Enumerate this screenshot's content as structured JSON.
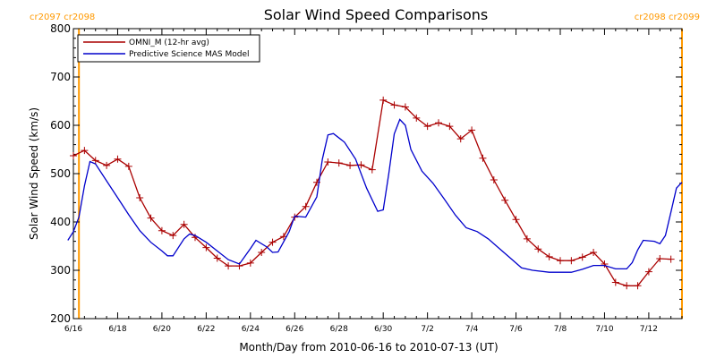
{
  "chart_data": {
    "type": "line",
    "title": "Solar Wind Speed Comparisons",
    "xlabel": "Month/Day from 2010-06-16 to 2010-07-13 (UT)",
    "ylabel": "Solar Wind Speed (km/s)",
    "xlim": [
      "2010-06-16",
      "2010-07-13T12:00"
    ],
    "ylim": [
      200,
      800
    ],
    "yticks": [
      200,
      300,
      400,
      500,
      600,
      700,
      800
    ],
    "xticks": [
      {
        "date": "2010-06-16",
        "label": "6/16"
      },
      {
        "date": "2010-06-18",
        "label": "6/18"
      },
      {
        "date": "2010-06-20",
        "label": "6/20"
      },
      {
        "date": "2010-06-22",
        "label": "6/22"
      },
      {
        "date": "2010-06-24",
        "label": "6/24"
      },
      {
        "date": "2010-06-26",
        "label": "6/26"
      },
      {
        "date": "2010-06-28",
        "label": "6/28"
      },
      {
        "date": "2010-06-30",
        "label": "6/30"
      },
      {
        "date": "2010-07-02",
        "label": "7/2"
      },
      {
        "date": "2010-07-04",
        "label": "7/4"
      },
      {
        "date": "2010-07-06",
        "label": "7/6"
      },
      {
        "date": "2010-07-08",
        "label": "7/8"
      },
      {
        "date": "2010-07-10",
        "label": "7/10"
      },
      {
        "date": "2010-07-12",
        "label": "7/12"
      }
    ],
    "rotation_markers": [
      {
        "date": "2010-06-16T06:00",
        "label": "cr2097 cr2098",
        "label_position": "top-left"
      },
      {
        "date": "2010-07-13T12:00",
        "label": "cr2098 cr2099",
        "label_position": "top-right"
      }
    ],
    "legend_position": "top-left",
    "series": [
      {
        "name": "OMNI_M (12-hr avg)",
        "color": "#aa0000",
        "marker": "plus",
        "points": [
          [
            "2010-06-16T00:00",
            537
          ],
          [
            "2010-06-16T12:00",
            548
          ],
          [
            "2010-06-17T00:00",
            527
          ],
          [
            "2010-06-17T12:00",
            517
          ],
          [
            "2010-06-18T00:00",
            530
          ],
          [
            "2010-06-18T12:00",
            515
          ],
          [
            "2010-06-19T00:00",
            450
          ],
          [
            "2010-06-19T12:00",
            408
          ],
          [
            "2010-06-20T00:00",
            382
          ],
          [
            "2010-06-20T12:00",
            372
          ],
          [
            "2010-06-21T00:00",
            395
          ],
          [
            "2010-06-21T12:00",
            368
          ],
          [
            "2010-06-22T00:00",
            347
          ],
          [
            "2010-06-22T12:00",
            325
          ],
          [
            "2010-06-23T00:00",
            309
          ],
          [
            "2010-06-23T12:00",
            309
          ],
          [
            "2010-06-24T00:00",
            315
          ],
          [
            "2010-06-24T12:00",
            337
          ],
          [
            "2010-06-25T00:00",
            358
          ],
          [
            "2010-06-25T12:00",
            370
          ],
          [
            "2010-06-26T00:00",
            410
          ],
          [
            "2010-06-26T12:00",
            432
          ],
          [
            "2010-06-27T00:00",
            482
          ],
          [
            "2010-06-27T12:00",
            524
          ],
          [
            "2010-06-28T00:00",
            522
          ],
          [
            "2010-06-28T12:00",
            517
          ],
          [
            "2010-06-29T00:00",
            518
          ],
          [
            "2010-06-29T12:00",
            508
          ],
          [
            "2010-06-30T00:00",
            652
          ],
          [
            "2010-06-30T12:00",
            642
          ],
          [
            "2010-07-01T00:00",
            638
          ],
          [
            "2010-07-01T12:00",
            615
          ],
          [
            "2010-07-02T00:00",
            598
          ],
          [
            "2010-07-02T12:00",
            605
          ],
          [
            "2010-07-03T00:00",
            598
          ],
          [
            "2010-07-03T12:00",
            572
          ],
          [
            "2010-07-04T00:00",
            590
          ],
          [
            "2010-07-04T12:00",
            532
          ],
          [
            "2010-07-05T00:00",
            487
          ],
          [
            "2010-07-05T12:00",
            445
          ],
          [
            "2010-07-06T00:00",
            405
          ],
          [
            "2010-07-06T12:00",
            365
          ],
          [
            "2010-07-07T00:00",
            344
          ],
          [
            "2010-07-07T12:00",
            328
          ],
          [
            "2010-07-08T00:00",
            320
          ],
          [
            "2010-07-08T12:00",
            320
          ],
          [
            "2010-07-09T00:00",
            327
          ],
          [
            "2010-07-09T12:00",
            337
          ],
          [
            "2010-07-10T00:00",
            313
          ],
          [
            "2010-07-10T12:00",
            275
          ],
          [
            "2010-07-11T00:00",
            268
          ],
          [
            "2010-07-11T12:00",
            268
          ],
          [
            "2010-07-12T00:00",
            297
          ],
          [
            "2010-07-12T12:00",
            324
          ],
          [
            "2010-07-13T00:00",
            323
          ]
        ]
      },
      {
        "name": "Predictive Science MAS Model",
        "color": "#0000cc",
        "marker": "none",
        "points": [
          [
            "2010-06-15T18:00",
            362
          ],
          [
            "2010-06-16T00:00",
            380
          ],
          [
            "2010-06-16T06:00",
            410
          ],
          [
            "2010-06-16T12:00",
            475
          ],
          [
            "2010-06-16T18:00",
            525
          ],
          [
            "2010-06-17T00:00",
            520
          ],
          [
            "2010-06-17T12:00",
            485
          ],
          [
            "2010-06-18T00:00",
            450
          ],
          [
            "2010-06-18T12:00",
            415
          ],
          [
            "2010-06-19T00:00",
            382
          ],
          [
            "2010-06-19T12:00",
            358
          ],
          [
            "2010-06-20T00:00",
            340
          ],
          [
            "2010-06-20T06:00",
            330
          ],
          [
            "2010-06-20T12:00",
            330
          ],
          [
            "2010-06-21T00:00",
            365
          ],
          [
            "2010-06-21T06:00",
            375
          ],
          [
            "2010-06-21T12:00",
            372
          ],
          [
            "2010-06-22T00:00",
            358
          ],
          [
            "2010-06-22T12:00",
            340
          ],
          [
            "2010-06-23T00:00",
            322
          ],
          [
            "2010-06-23T12:00",
            313
          ],
          [
            "2010-06-24T00:00",
            345
          ],
          [
            "2010-06-24T06:00",
            362
          ],
          [
            "2010-06-24T18:00",
            348
          ],
          [
            "2010-06-25T00:00",
            337
          ],
          [
            "2010-06-25T06:00",
            338
          ],
          [
            "2010-06-25T18:00",
            380
          ],
          [
            "2010-06-26T00:00",
            412
          ],
          [
            "2010-06-26T12:00",
            410
          ],
          [
            "2010-06-27T00:00",
            452
          ],
          [
            "2010-06-27T06:00",
            530
          ],
          [
            "2010-06-27T12:00",
            580
          ],
          [
            "2010-06-27T18:00",
            583
          ],
          [
            "2010-06-28T06:00",
            565
          ],
          [
            "2010-06-28T18:00",
            530
          ],
          [
            "2010-06-29T06:00",
            470
          ],
          [
            "2010-06-29T18:00",
            422
          ],
          [
            "2010-06-30T00:00",
            425
          ],
          [
            "2010-06-30T06:00",
            500
          ],
          [
            "2010-06-30T12:00",
            582
          ],
          [
            "2010-06-30T18:00",
            612
          ],
          [
            "2010-07-01T00:00",
            600
          ],
          [
            "2010-07-01T06:00",
            550
          ],
          [
            "2010-07-01T18:00",
            505
          ],
          [
            "2010-07-02T06:00",
            480
          ],
          [
            "2010-07-02T18:00",
            448
          ],
          [
            "2010-07-03T06:00",
            415
          ],
          [
            "2010-07-03T18:00",
            388
          ],
          [
            "2010-07-04T06:00",
            380
          ],
          [
            "2010-07-04T18:00",
            365
          ],
          [
            "2010-07-05T06:00",
            345
          ],
          [
            "2010-07-05T18:00",
            325
          ],
          [
            "2010-07-06T06:00",
            305
          ],
          [
            "2010-07-06T18:00",
            300
          ],
          [
            "2010-07-07T12:00",
            296
          ],
          [
            "2010-07-08T12:00",
            296
          ],
          [
            "2010-07-09T00:00",
            302
          ],
          [
            "2010-07-09T12:00",
            310
          ],
          [
            "2010-07-10T00:00",
            310
          ],
          [
            "2010-07-10T12:00",
            303
          ],
          [
            "2010-07-11T00:00",
            303
          ],
          [
            "2010-07-11T06:00",
            316
          ],
          [
            "2010-07-11T12:00",
            342
          ],
          [
            "2010-07-11T18:00",
            362
          ],
          [
            "2010-07-12T06:00",
            360
          ],
          [
            "2010-07-12T12:00",
            355
          ],
          [
            "2010-07-12T18:00",
            372
          ],
          [
            "2010-07-13T00:00",
            420
          ],
          [
            "2010-07-13T06:00",
            470
          ],
          [
            "2010-07-13T12:00",
            482
          ]
        ]
      }
    ]
  }
}
